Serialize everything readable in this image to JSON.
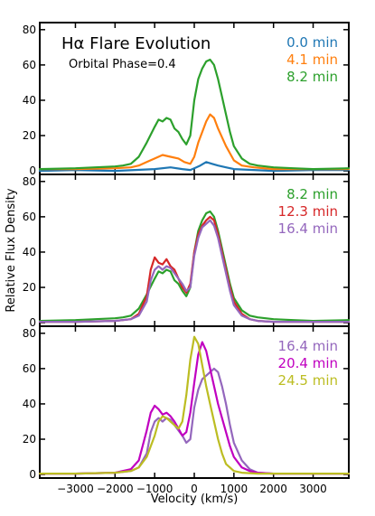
{
  "chart_data": {
    "type": "line",
    "title": "Hα Flare Evolution",
    "annotation": "Orbital Phase=0.4",
    "xlabel": "Velocity (km/s)",
    "ylabel": "Relative Flux Density",
    "xlim": [
      -3900,
      3900
    ],
    "ylim": [
      -2,
      84
    ],
    "x_ticks": [
      -3000,
      -2000,
      -1000,
      0,
      1000,
      2000,
      3000
    ],
    "y_ticks": [
      0,
      20,
      40,
      60,
      80
    ],
    "grid": false,
    "legend_position": "top-right",
    "colors": {
      "blue": "#1f77b4",
      "orange": "#ff7f0e",
      "green": "#2ca02c",
      "red": "#d62728",
      "purple": "#9467bd",
      "magenta": "#c000c0",
      "olive": "#bcbd22"
    },
    "panels": [
      {
        "series": [
          {
            "name": "0.0 min",
            "color": "#1f77b4",
            "x": [
              -3900,
              -3000,
              -2000,
              -1500,
              -1000,
              -600,
              -300,
              -100,
              0,
              150,
              300,
              450,
              600,
              800,
              1000,
              1500,
              2000,
              3000,
              3900
            ],
            "y": [
              0,
              0.5,
              0,
              0.5,
              1,
              2,
              1,
              0.5,
              1.5,
              3,
              5,
              4,
              3,
              2,
              1,
              0.5,
              0,
              0.5,
              0.5
            ]
          },
          {
            "name": "4.1 min",
            "color": "#ff7f0e",
            "x": [
              -3900,
              -3000,
              -2000,
              -1600,
              -1400,
              -1200,
              -1000,
              -800,
              -600,
              -400,
              -250,
              -100,
              0,
              100,
              200,
              300,
              400,
              500,
              600,
              800,
              1000,
              1200,
              1500,
              2000,
              3000,
              3900
            ],
            "y": [
              1,
              1,
              1.5,
              2,
              3,
              5,
              7,
              9,
              8,
              7,
              5,
              4,
              8,
              16,
              22,
              28,
              32,
              30,
              24,
              14,
              6,
              3,
              2,
              1,
              1,
              1
            ]
          },
          {
            "name": "8.2 min",
            "color": "#2ca02c",
            "x": [
              -3900,
              -3000,
              -2500,
              -2000,
              -1800,
              -1600,
              -1400,
              -1200,
              -1000,
              -900,
              -800,
              -700,
              -600,
              -500,
              -400,
              -300,
              -200,
              -100,
              0,
              100,
              200,
              300,
              400,
              500,
              600,
              700,
              800,
              900,
              1000,
              1200,
              1400,
              1600,
              2000,
              2500,
              3000,
              3900
            ],
            "y": [
              1,
              1.5,
              2,
              2.5,
              3,
              4,
              8,
              16,
              25,
              29,
              28,
              30,
              29,
              24,
              22,
              18,
              15,
              20,
              40,
              52,
              58,
              62,
              63,
              60,
              52,
              42,
              32,
              22,
              14,
              7,
              4,
              3,
              2,
              1.5,
              1,
              1.5
            ]
          }
        ]
      },
      {
        "series": [
          {
            "name": "8.2 min",
            "color": "#2ca02c",
            "x": [
              -3900,
              -3000,
              -2500,
              -2000,
              -1800,
              -1600,
              -1400,
              -1200,
              -1000,
              -900,
              -800,
              -700,
              -600,
              -500,
              -400,
              -300,
              -200,
              -100,
              0,
              100,
              200,
              300,
              400,
              500,
              600,
              700,
              800,
              900,
              1000,
              1200,
              1400,
              1600,
              2000,
              2500,
              3000,
              3900
            ],
            "y": [
              1,
              1.5,
              2,
              2.5,
              3,
              4,
              8,
              16,
              25,
              29,
              28,
              30,
              29,
              24,
              22,
              18,
              15,
              20,
              40,
              52,
              58,
              62,
              63,
              60,
              52,
              42,
              32,
              22,
              14,
              7,
              4,
              3,
              2,
              1.5,
              1,
              1.5
            ]
          },
          {
            "name": "12.3 min",
            "color": "#d62728",
            "x": [
              -3900,
              -3000,
              -2000,
              -1600,
              -1400,
              -1200,
              -1100,
              -1000,
              -900,
              -800,
              -700,
              -600,
              -500,
              -400,
              -300,
              -200,
              -100,
              0,
              100,
              200,
              300,
              400,
              500,
              600,
              700,
              800,
              900,
              1000,
              1200,
              1400,
              1600,
              2000,
              3000,
              3900
            ],
            "y": [
              0.5,
              0.5,
              1,
              2,
              5,
              15,
              30,
              37,
              34,
              33,
              36,
              32,
              30,
              25,
              20,
              17,
              22,
              40,
              50,
              55,
              58,
              60,
              58,
              50,
              40,
              30,
              20,
              12,
              5,
              2,
              1,
              0.5,
              0.5,
              0.5
            ]
          },
          {
            "name": "16.4 min",
            "color": "#9467bd",
            "x": [
              -3900,
              -3000,
              -2000,
              -1600,
              -1400,
              -1200,
              -1100,
              -1000,
              -900,
              -800,
              -700,
              -600,
              -500,
              -400,
              -300,
              -200,
              -100,
              0,
              100,
              200,
              300,
              400,
              500,
              600,
              700,
              800,
              900,
              1000,
              1200,
              1400,
              1600,
              2000,
              3000,
              3900
            ],
            "y": [
              0.5,
              0.5,
              1,
              2,
              4,
              12,
              24,
              30,
              32,
              30,
              32,
              31,
              28,
              25,
              22,
              18,
              20,
              38,
              48,
              54,
              56,
              58,
              55,
              48,
              38,
              28,
              18,
              10,
              4,
              2,
              1,
              0.5,
              0.5,
              0.5
            ]
          }
        ]
      },
      {
        "series": [
          {
            "name": "16.4 min",
            "color": "#9467bd",
            "x": [
              -3900,
              -3000,
              -2000,
              -1600,
              -1400,
              -1200,
              -1100,
              -1000,
              -900,
              -800,
              -700,
              -600,
              -500,
              -400,
              -300,
              -200,
              -100,
              0,
              100,
              200,
              300,
              400,
              500,
              600,
              700,
              800,
              900,
              1000,
              1200,
              1400,
              1600,
              2000,
              3000,
              3900
            ],
            "y": [
              0.5,
              0.5,
              1,
              2,
              4,
              12,
              24,
              30,
              32,
              30,
              32,
              31,
              28,
              25,
              22,
              18,
              20,
              38,
              48,
              54,
              56,
              58,
              60,
              58,
              50,
              40,
              28,
              18,
              8,
              3,
              1,
              0.5,
              0.5,
              0.5
            ]
          },
          {
            "name": "20.4 min",
            "color": "#c000c0",
            "x": [
              -3900,
              -3000,
              -2000,
              -1600,
              -1400,
              -1200,
              -1100,
              -1000,
              -900,
              -800,
              -700,
              -600,
              -500,
              -400,
              -300,
              -200,
              -100,
              0,
              100,
              200,
              300,
              400,
              500,
              600,
              700,
              800,
              900,
              1000,
              1200,
              1400,
              1600,
              2000,
              3000,
              3900
            ],
            "y": [
              0.5,
              0.5,
              1,
              3,
              8,
              25,
              35,
              39,
              37,
              34,
              35,
              33,
              30,
              26,
              22,
              24,
              35,
              52,
              68,
              75,
              70,
              60,
              50,
              40,
              32,
              24,
              16,
              10,
              4,
              2,
              1,
              0.5,
              0.5,
              0.5
            ]
          },
          {
            "name": "24.5 min",
            "color": "#bcbd22",
            "x": [
              -3900,
              -3000,
              -2000,
              -1600,
              -1400,
              -1200,
              -1000,
              -900,
              -800,
              -700,
              -600,
              -500,
              -400,
              -300,
              -200,
              -100,
              0,
              100,
              200,
              300,
              400,
              500,
              600,
              700,
              800,
              1000,
              1200,
              1600,
              2000,
              3000,
              3900
            ],
            "y": [
              0.5,
              0.5,
              1,
              2,
              4,
              10,
              22,
              30,
              33,
              32,
              30,
              28,
              26,
              30,
              45,
              65,
              78,
              74,
              62,
              50,
              40,
              30,
              20,
              12,
              6,
              2,
              1,
              0.5,
              0.5,
              0.5,
              0.5
            ]
          }
        ]
      }
    ]
  }
}
